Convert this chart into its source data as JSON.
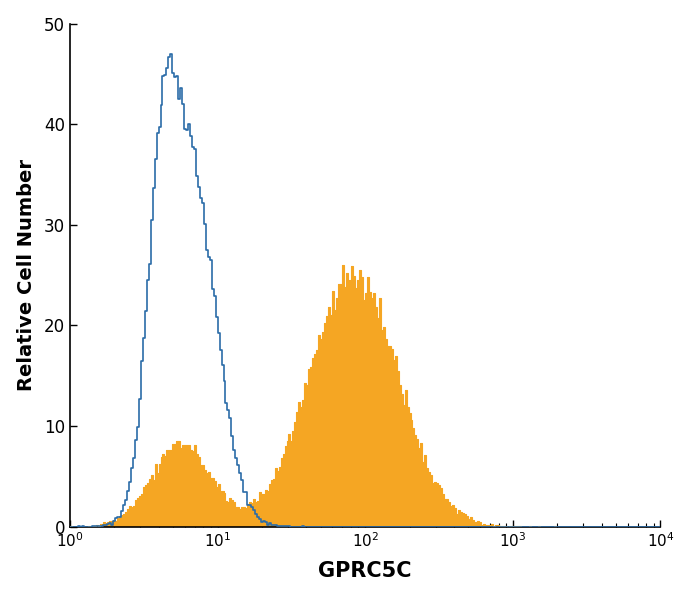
{
  "xlabel": "GPRC5C",
  "ylabel": "Relative Cell Number",
  "xlim_log": [
    1,
    10000
  ],
  "ylim": [
    0,
    50
  ],
  "yticks": [
    0,
    10,
    20,
    30,
    40,
    50
  ],
  "xticks_log": [
    1,
    10,
    100,
    1000,
    10000
  ],
  "blue_color": "#2B6CA8",
  "orange_color": "#F5A623",
  "background_color": "#FFFFFF",
  "figsize": [
    6.91,
    5.98
  ],
  "dpi": 100,
  "blue_components": {
    "centers": [
      0.82,
      0.62
    ],
    "sigmas": [
      0.17,
      0.1
    ],
    "weights": [
      0.7,
      0.3
    ]
  },
  "orange_components": {
    "centers": [
      0.75,
      1.92
    ],
    "sigmas": [
      0.2,
      0.3
    ],
    "weights": [
      0.18,
      0.82
    ]
  },
  "blue_max": 47,
  "orange_max": 26,
  "n_bins": 300,
  "log_min": 0.0,
  "log_max": 4.0
}
